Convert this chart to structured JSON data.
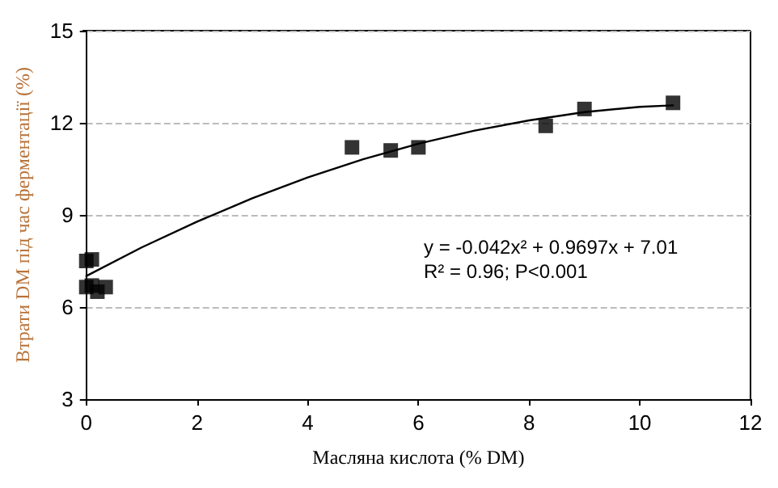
{
  "chart_data": {
    "type": "scatter",
    "xlabel": "Масляна кислота (% DM)",
    "ylabel": "Втрати DM під час ферментації (%)",
    "xlim": [
      0,
      12
    ],
    "xticks": [
      0,
      2,
      4,
      6,
      8,
      10,
      12
    ],
    "ylim": [
      3,
      15
    ],
    "yticks": [
      3,
      6,
      9,
      12,
      15
    ],
    "grid": "y",
    "series": [
      {
        "marker": "square",
        "color": "#000000",
        "x": [
          0.0,
          0.1,
          0.0,
          0.1,
          0.2,
          0.35,
          4.8,
          5.5,
          6.0,
          8.3,
          9.0,
          10.6
        ],
        "values": [
          7.5,
          7.55,
          6.65,
          6.7,
          6.5,
          6.65,
          11.2,
          11.1,
          11.2,
          11.9,
          12.45,
          12.65
        ]
      },
      {
        "type": "line",
        "marker": "none",
        "color": "#000000",
        "line_style": "solid",
        "x": [
          0,
          1,
          2,
          3,
          4,
          5,
          6,
          7,
          8,
          9,
          10,
          10.6
        ],
        "values": [
          7.01,
          7.94,
          8.78,
          9.54,
          10.22,
          10.81,
          11.32,
          11.74,
          12.08,
          12.35,
          12.52,
          12.57
        ]
      }
    ],
    "annotations": [
      "y = -0.042x² + 0.9697x + 7.01",
      "R² = 0.96; P<0.001"
    ]
  }
}
